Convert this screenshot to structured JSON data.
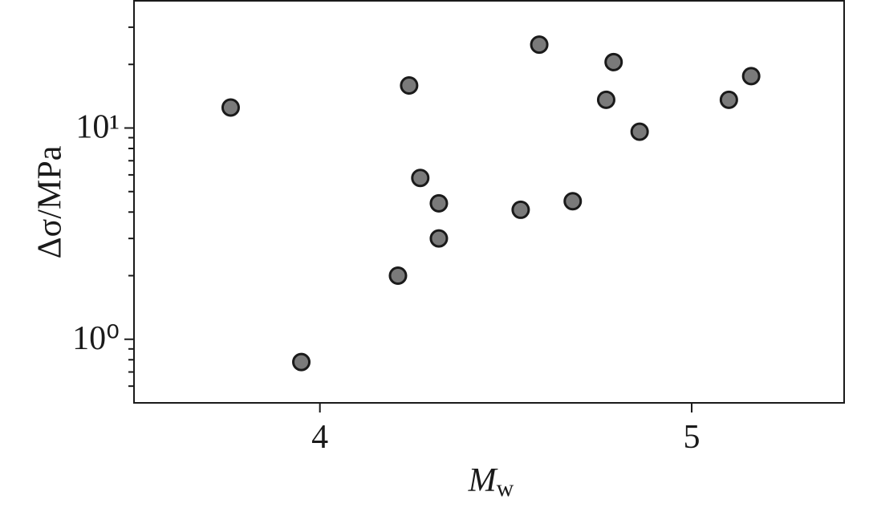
{
  "chart_data": {
    "type": "scatter",
    "xlabel": "M",
    "xlabel_sub": "w",
    "ylabel": "Δσ/MPa",
    "x": [
      3.76,
      3.95,
      4.21,
      4.24,
      4.27,
      4.32,
      4.32,
      4.54,
      4.59,
      4.68,
      4.77,
      4.79,
      4.86,
      5.1,
      5.16
    ],
    "series": [
      {
        "color": "#7a7a7a",
        "values": [
          12.5,
          0.78,
          2.0,
          15.9,
          5.8,
          4.4,
          3.0,
          4.1,
          24.8,
          4.5,
          13.6,
          20.5,
          9.6,
          13.6,
          17.6
        ]
      }
    ],
    "xlim": [
      3.5,
      5.41
    ],
    "xticks": [
      4,
      5
    ],
    "ylim": [
      0.5,
      40
    ],
    "ylog": true,
    "yticks": [
      {
        "value": 1,
        "label": "10⁰"
      },
      {
        "value": 10,
        "label": "10¹"
      }
    ],
    "minor_yticks": [
      0.6,
      0.7,
      0.8,
      0.9,
      2,
      3,
      4,
      5,
      6,
      7,
      8,
      9,
      20,
      30
    ]
  }
}
